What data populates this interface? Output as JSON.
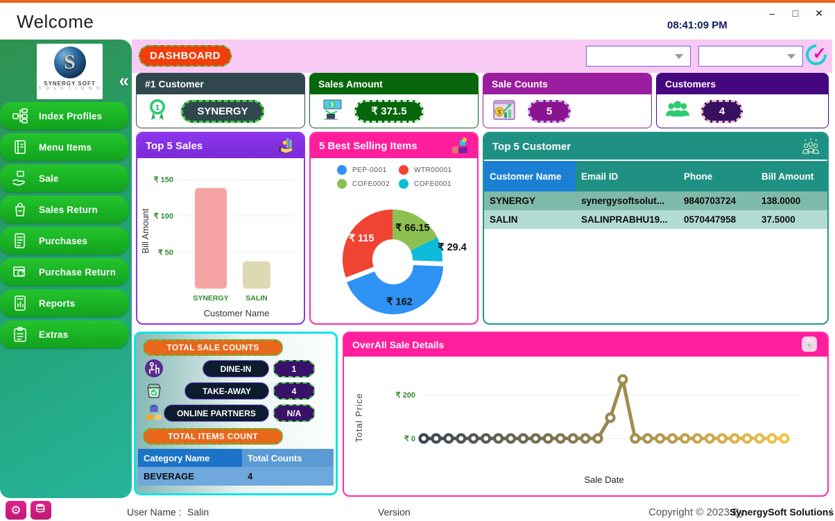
{
  "window": {
    "title": "Welcome",
    "time": "08:41:09 PM",
    "minimize": "–",
    "maximize": "□",
    "close": "✕"
  },
  "header": {
    "dashboard_label": "DASHBOARD",
    "combo1_value": "",
    "combo2_value": ""
  },
  "colors": {
    "accent_orange": "#E8671B",
    "button_orange": "#F23E0C",
    "strip_pink": "#F8C9F3",
    "sidebar_green": "#2F9150",
    "menu_green": "#17AC22",
    "header_pink": "#FF1E9C",
    "header_purple": "#8C35EC",
    "header_teal": "#1F9183",
    "cyan_border": "#12E3E9",
    "dashed_green": "#3FD13F",
    "selected_blue": "#1B7FD4"
  },
  "sidebar": {
    "logo_line1": "SYNERGY SOFT",
    "logo_line2": "S O L U T I O N S",
    "logo_letter": "S",
    "collapse_icon": "«",
    "items": [
      {
        "label": "Index Profiles",
        "icon": "hierarchy-icon"
      },
      {
        "label": "Menu Items",
        "icon": "book-icon"
      },
      {
        "label": "Sale",
        "icon": "hand-box-icon"
      },
      {
        "label": "Sales Return",
        "icon": "bag-return-icon"
      },
      {
        "label": "Purchases",
        "icon": "list-icon"
      },
      {
        "label": "Purchase Return",
        "icon": "box-return-icon"
      },
      {
        "label": "Reports",
        "icon": "report-icon"
      },
      {
        "label": "Extras",
        "icon": "clipboard-icon"
      }
    ]
  },
  "stat_cards": [
    {
      "title": "#1 Customer",
      "value": "SYNERGY",
      "icon": "medal-icon",
      "header_color": "#31474E",
      "pill_bg": "#31474E",
      "pill_border": "#3ED63E",
      "pill_width": 120
    },
    {
      "title": "Sales Amount",
      "value": "₹ 371.5",
      "icon": "money-hand-icon",
      "header_color": "#07660B",
      "pill_bg": "#07660B",
      "pill_border": "#BFE9C8",
      "pill_width": 100
    },
    {
      "title": "Sale Counts",
      "value": "5",
      "icon": "sales-chart-icon",
      "header_color": "#9A1C9F",
      "pill_bg": "#8A138F",
      "pill_border": "#C9B8F5",
      "pill_width": 62
    },
    {
      "title": "Customers",
      "value": "4",
      "icon": "users-icon",
      "header_color": "#45067F",
      "pill_bg": "#38105F",
      "pill_border": "#F0B9CB",
      "pill_width": 60
    }
  ],
  "top5_customers": {
    "title": "Top 5 Customer",
    "columns": [
      "Customer Name",
      "Email ID",
      "Phone",
      "Bill Amount"
    ],
    "rows": [
      [
        "SYNERGY",
        "synergysoftsolut...",
        "9840703724",
        "138.0000"
      ],
      [
        "SALIN",
        "SALINPRABHU19...",
        "0570447958",
        "37.5000"
      ]
    ]
  },
  "sale_counts_panel": {
    "title": "TOTAL SALE COUNTS",
    "rows": [
      {
        "label": "DINE-IN",
        "value": "1",
        "icon": "dine-in-icon",
        "label_width": 96
      },
      {
        "label": "TAKE-AWAY",
        "value": "4",
        "icon": "take-away-icon",
        "label_width": 122
      },
      {
        "label": "ONLINE PARTNERS",
        "value": "N/A",
        "icon": "online-partners-icon",
        "label_width": 152
      }
    ],
    "items_title": "TOTAL ITEMS COUNT",
    "table": {
      "columns": [
        "Category Name",
        "Total Counts"
      ],
      "rows": [
        [
          "BEVERAGE",
          "4"
        ]
      ]
    }
  },
  "footer": {
    "user_name_label": "User Name :",
    "user_name": "Salin",
    "version_label": "Version",
    "copyright": "Copyright © 2023 By",
    "company": "SynergySoft Solutions"
  },
  "chart_data": [
    {
      "type": "bar",
      "title": "Top 5 Sales",
      "categories": [
        "SYNERGY",
        "SALIN"
      ],
      "values": [
        138,
        37.5
      ],
      "xlabel": "Customer Name",
      "ylabel": "Bill Amount",
      "ylim": [
        0,
        160
      ],
      "yticks": [
        50,
        100,
        150
      ],
      "tick_prefix": "₹ ",
      "bar_colors": [
        "#F5A3A3",
        "#DDD9B4"
      ],
      "tick_color": "#2E8B2E",
      "grid": true
    },
    {
      "type": "pie",
      "title": "5 Best Selling Items",
      "labels": [
        "PEP-0001",
        "WTR00001",
        "COFE0002",
        "COFE0001"
      ],
      "values": [
        162,
        115,
        66.15,
        29.4
      ],
      "colors": [
        "#2E93F5",
        "#EF4433",
        "#8CC152",
        "#0CBCD9"
      ],
      "slice_labels": [
        "₹ 162",
        "₹ 115",
        "₹ 66.15",
        "₹ 29.4"
      ],
      "label_colors": [
        "#111111",
        "#ffffff",
        "#111111",
        "#111111"
      ],
      "draw_order": [
        2,
        3,
        0,
        1
      ],
      "explode_index": 0,
      "donut": true,
      "legend_position": "top"
    },
    {
      "type": "line",
      "title": "OverAll Sale Details",
      "xlabel": "Sale Date",
      "ylabel": "Total Price",
      "yticks": [
        0,
        200
      ],
      "tick_prefix": "₹ ",
      "ylim": [
        0,
        290
      ],
      "tick_color": "#2E8B2E",
      "grid": true,
      "values": [
        0,
        0,
        0,
        0,
        0,
        0,
        0,
        0,
        0,
        0,
        0,
        0,
        0,
        0,
        0,
        95,
        270,
        0,
        0,
        0,
        0,
        0,
        0,
        0,
        0,
        0,
        0,
        0,
        0,
        0
      ],
      "marker": "open-circle",
      "line_gradient": [
        "#3A4754",
        "#F2C44D"
      ]
    }
  ]
}
